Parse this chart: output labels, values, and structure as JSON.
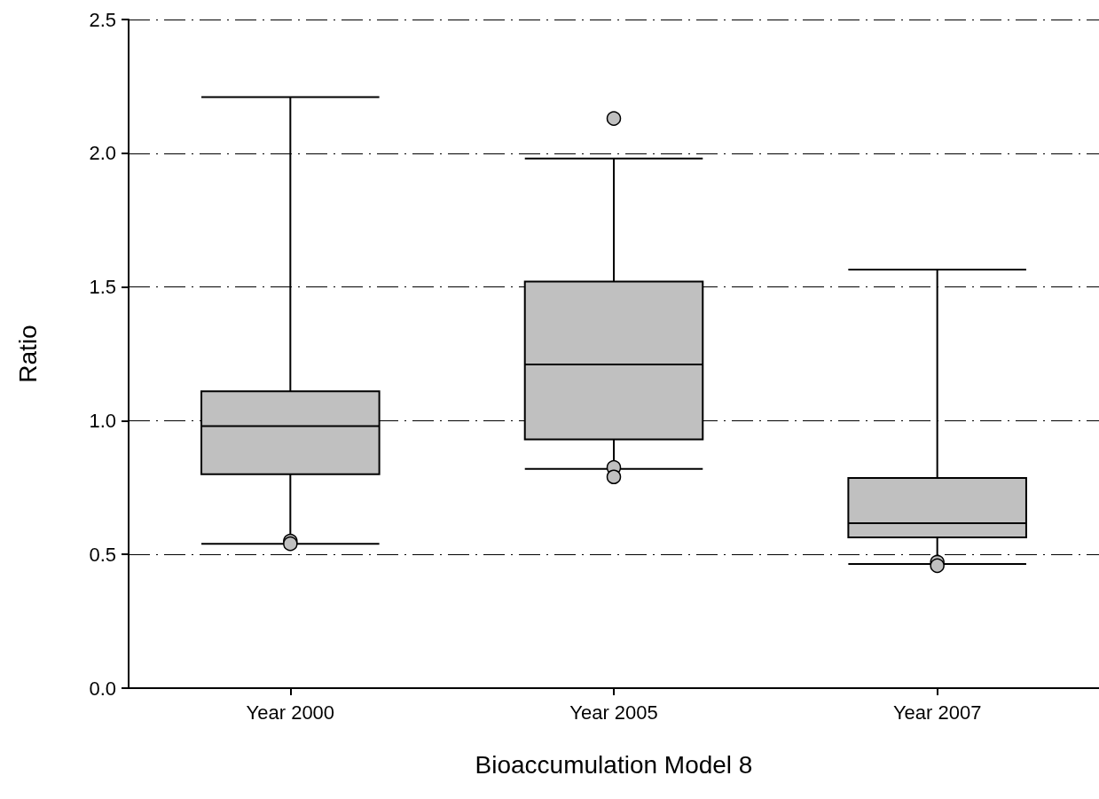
{
  "chart_data": {
    "type": "box",
    "xlabel": "Bioaccumulation Model 8",
    "ylabel": "Ratio",
    "categories": [
      "Year 2000",
      "Year 2005",
      "Year 2007"
    ],
    "boxes": [
      {
        "low": 0.54,
        "q1": 0.8,
        "median": 0.98,
        "q3": 1.11,
        "high": 2.21,
        "outliers": [
          0.55,
          0.54
        ]
      },
      {
        "low": 0.82,
        "q1": 0.93,
        "median": 1.21,
        "q3": 1.52,
        "high": 1.98,
        "outliers": [
          2.13,
          0.825,
          0.79
        ]
      },
      {
        "low": 0.464,
        "q1": 0.564,
        "median": 0.617,
        "q3": 0.786,
        "high": 1.565,
        "outliers": [
          0.471,
          0.458
        ]
      }
    ],
    "color": "#c0c0c0",
    "ylim": [
      0,
      2.5
    ],
    "yticks": [
      {
        "value": 0,
        "label": "0.0"
      },
      0.5,
      {
        "value": 1,
        "label": "1.0"
      },
      1.5,
      {
        "value": 2,
        "label": "2.0"
      },
      2.5
    ],
    "grid": "y",
    "marker": "circle",
    "line_style": "dashed"
  }
}
